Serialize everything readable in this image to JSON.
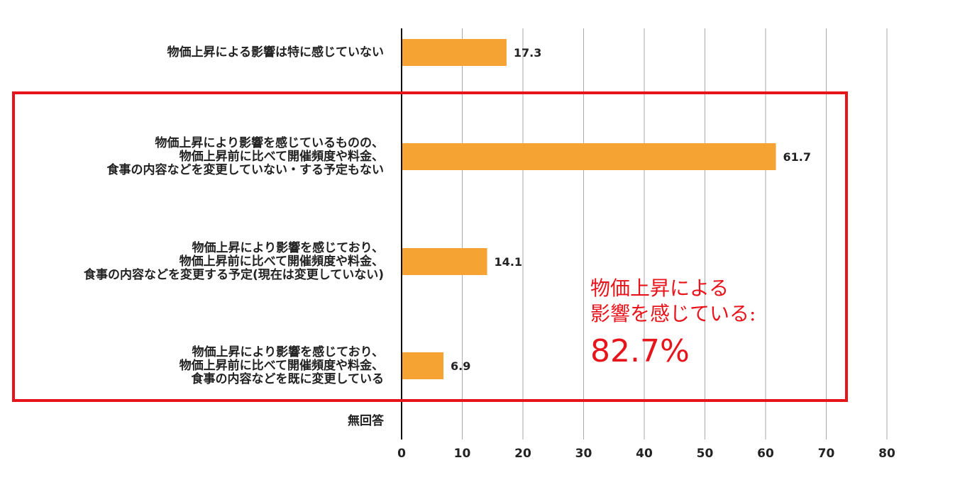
{
  "chart_data": {
    "type": "bar",
    "orientation": "horizontal",
    "categories": [
      "物価上昇による影響は特に感じていない",
      "物価上昇により影響を感じているものの、\n物価上昇前に比べて開催頻度や料金、\n食事の内容などを変更していない・する予定もない",
      "物価上昇により影響を感じており、\n物価上昇前に比べて開催頻度や料金、\n食事の内容などを変更する予定(現在は変更していない)",
      "物価上昇により影響を感じており、\n物価上昇前に比べて開催頻度や料金、\n食事の内容などを既に変更している",
      "無回答"
    ],
    "values": [
      17.3,
      61.7,
      14.1,
      6.9,
      null
    ],
    "value_labels": [
      "17.3",
      "61.7",
      "14.1",
      "6.9",
      ""
    ],
    "xlim": [
      0,
      80
    ],
    "xticks": [
      "0",
      "10",
      "20",
      "30",
      "40",
      "50",
      "60",
      "70",
      "80"
    ],
    "grid": true,
    "bar_color": "#f5a434",
    "grid_color": "#aaaaaa",
    "title": "",
    "xlabel": "",
    "ylabel": ""
  },
  "annotation": {
    "line1": "物価上昇による",
    "line2": "影響を感じている:",
    "value": "82.7%",
    "color": "#e8141c"
  }
}
